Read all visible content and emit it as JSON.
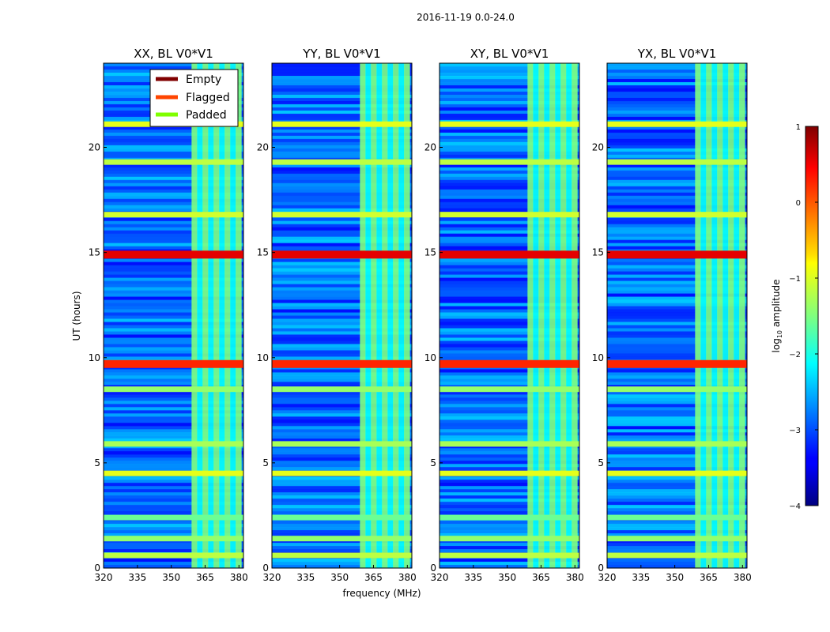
{
  "chart_data": {
    "type": "heatmap",
    "suptitle": "2016-11-19 0.0-24.0",
    "xlabel": "frequency (MHz)",
    "ylabel": "UT (hours)",
    "xlim": [
      320,
      382
    ],
    "ylim": [
      0,
      24
    ],
    "xticks": [
      "320",
      "335",
      "350",
      "365",
      "380"
    ],
    "xtick_values": [
      320,
      335,
      350,
      365,
      380
    ],
    "yticks": [
      "0",
      "5",
      "10",
      "15",
      "20"
    ],
    "ytick_values": [
      0,
      5,
      10,
      15,
      20
    ],
    "panels": [
      {
        "title": "XX, BL V0*V1",
        "rfi_band_mhz": [
          359,
          381
        ]
      },
      {
        "title": "YY, BL V0*V1",
        "rfi_band_mhz": [
          359,
          381
        ]
      },
      {
        "title": "XY, BL V0*V1",
        "rfi_band_mhz": [
          359,
          381
        ]
      },
      {
        "title": "YX, BL V0*V1",
        "rfi_band_mhz": [
          359,
          381
        ]
      }
    ],
    "legend": {
      "position": "upper-right of first panel",
      "entries": [
        {
          "label": "Empty",
          "color": "#800000"
        },
        {
          "label": "Flagged",
          "color": "#ff4500"
        },
        {
          "label": "Padded",
          "color": "#7fff00"
        }
      ]
    },
    "colorbar": {
      "label_prefix": "log",
      "label_sub": "10",
      "label_suffix": " amplitude",
      "range": [
        -4,
        1
      ],
      "ticks": [
        "1",
        "0",
        "−1",
        "−2",
        "−3",
        "−4"
      ],
      "tick_values": [
        1,
        0,
        -1,
        -2,
        -3,
        -4
      ],
      "colormap": "jet"
    },
    "bright_rows_ut": [
      {
        "ut": 0.6,
        "value": -1.2
      },
      {
        "ut": 1.4,
        "value": -1.4
      },
      {
        "ut": 2.4,
        "value": -1.6
      },
      {
        "ut": 4.5,
        "value": -1.0
      },
      {
        "ut": 5.9,
        "value": -1.3
      },
      {
        "ut": 8.5,
        "value": -1.4
      },
      {
        "ut": 9.7,
        "value": 0.2
      },
      {
        "ut": 14.9,
        "value": 0.5
      },
      {
        "ut": 16.8,
        "value": -1.1
      },
      {
        "ut": 19.3,
        "value": -1.2
      },
      {
        "ut": 21.1,
        "value": -1.0
      }
    ]
  }
}
